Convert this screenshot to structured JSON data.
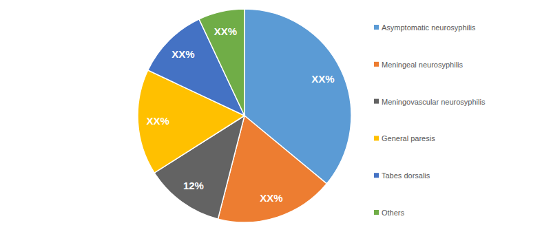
{
  "chart_data": {
    "type": "pie",
    "categories": [
      "Asymptomatic neurosyphilis",
      "Meningeal neurosyphilis",
      "Meningovascular neurosyphilis",
      "General paresis",
      "Tabes dorsalis",
      "Others"
    ],
    "values": [
      36,
      18,
      12,
      16,
      11,
      7
    ],
    "value_labels": [
      "XX%",
      "XX%",
      "12%",
      "XX%",
      "XX%",
      "XX%"
    ],
    "colors": [
      "#5b9bd5",
      "#ed7d31",
      "#636363",
      "#ffc000",
      "#4472c4",
      "#70ad47"
    ],
    "data_labels": true,
    "legend": "right"
  }
}
